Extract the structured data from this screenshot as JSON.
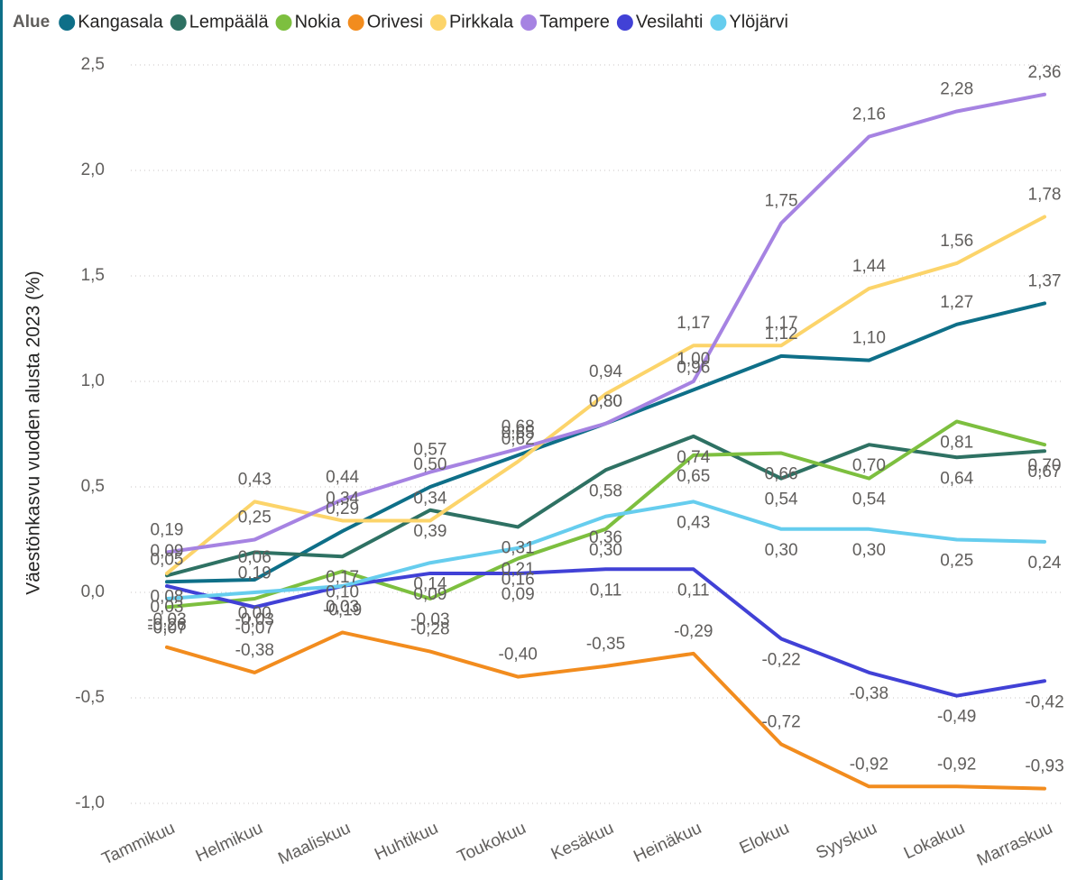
{
  "chart_data": {
    "type": "line",
    "legend_title": "Alue",
    "y_label": "Väestönkasvu vuoden alusta 2023 (%)",
    "categories": [
      "Tammikuu",
      "Helmikuu",
      "Maaliskuu",
      "Huhtikuu",
      "Toukokuu",
      "Kesäkuu",
      "Heinäkuu",
      "Elokuu",
      "Syyskuu",
      "Lokakuu",
      "Marraskuu"
    ],
    "ylim": [
      -1.0,
      2.5
    ],
    "yticks": [
      {
        "value": -1.0,
        "label": "-1,0"
      },
      {
        "value": -0.5,
        "label": "-0,5"
      },
      {
        "value": 0.0,
        "label": "0,0"
      },
      {
        "value": 0.5,
        "label": "0,5"
      },
      {
        "value": 1.0,
        "label": "1,0"
      },
      {
        "value": 1.5,
        "label": "1,5"
      },
      {
        "value": 2.0,
        "label": "2,0"
      },
      {
        "value": 2.5,
        "label": "2,5"
      }
    ],
    "grid": true,
    "series": [
      {
        "name": "Kangasala",
        "color": "#0e6f88",
        "values": [
          0.05,
          0.06,
          0.29,
          0.5,
          0.65,
          0.8,
          0.96,
          1.12,
          1.1,
          1.27,
          1.37
        ],
        "value_labels": [
          "0,05",
          "0,06",
          "0,29",
          "0,50",
          "0,65",
          "0,80",
          "0,96",
          "1,12",
          "1,10",
          "1,27",
          "1,37"
        ]
      },
      {
        "name": "Lempäälä",
        "color": "#2e7163",
        "values": [
          0.08,
          0.19,
          0.17,
          0.39,
          0.31,
          0.58,
          0.74,
          0.54,
          0.7,
          0.64,
          0.67
        ],
        "value_labels": [
          "0,08",
          "0,19",
          "0,17",
          "0,39",
          "0,31",
          "0,58",
          "0,74",
          "0,54",
          "0,70",
          "0,64",
          "0,67"
        ]
      },
      {
        "name": "Nokia",
        "color": "#7dbf3f",
        "values": [
          -0.07,
          -0.03,
          0.1,
          -0.03,
          0.16,
          0.3,
          0.65,
          0.66,
          0.54,
          0.81,
          0.7
        ],
        "value_labels": [
          "-0,07",
          "-0,03",
          "0,10",
          "-0,03",
          "0,16",
          "0,30",
          "0,65",
          "0,66",
          "0,54",
          "0,81",
          "0,70"
        ]
      },
      {
        "name": "Orivesi",
        "color": "#f28c1e",
        "values": [
          -0.26,
          -0.38,
          -0.19,
          -0.28,
          -0.4,
          -0.35,
          -0.29,
          -0.72,
          -0.92,
          -0.92,
          -0.93
        ],
        "value_labels": [
          "-0,26",
          "-0,38",
          "-0,19",
          "-0,28",
          "-0,40",
          "-0,35",
          "-0,29",
          "-0,72",
          "-0,92",
          "-0,92",
          "-0,93"
        ]
      },
      {
        "name": "Pirkkala",
        "color": "#fcd46a",
        "values": [
          0.09,
          0.43,
          0.34,
          0.34,
          0.62,
          0.94,
          1.17,
          1.17,
          1.44,
          1.56,
          1.78
        ],
        "value_labels": [
          "0,09",
          "0,43",
          "0,34",
          "0,34",
          "0,62",
          "0,94",
          "1,17",
          "1,17",
          "1,44",
          "1,56",
          "1,78"
        ]
      },
      {
        "name": "Tampere",
        "color": "#a683e2",
        "values": [
          0.19,
          0.25,
          0.44,
          0.57,
          0.68,
          0.8,
          1.0,
          1.75,
          2.16,
          2.28,
          2.36
        ],
        "value_labels": [
          "0,19",
          "0,25",
          "0,44",
          "0,57",
          "0,68",
          "0,80",
          "1,00",
          "1,75",
          "2,16",
          "2,28",
          "2,36"
        ]
      },
      {
        "name": "Vesilahti",
        "color": "#4141d6",
        "values": [
          0.03,
          -0.07,
          0.03,
          0.09,
          0.09,
          0.11,
          0.11,
          -0.22,
          -0.38,
          -0.49,
          -0.42
        ],
        "value_labels": [
          "0,03",
          "-0,07",
          "0,03",
          "0,09",
          "0,09",
          "0,11",
          "0,11",
          "-0,22",
          "-0,38",
          "-0,49",
          "-0,42"
        ]
      },
      {
        "name": "Ylöjärvi",
        "color": "#66cdee",
        "values": [
          -0.03,
          0.0,
          0.03,
          0.14,
          0.21,
          0.36,
          0.43,
          0.3,
          0.3,
          0.25,
          0.24
        ],
        "value_labels": [
          "-0,03",
          "0,00",
          "0,03",
          "0,14",
          "0,21",
          "0,36",
          "0,43",
          "0,30",
          "0,30",
          "0,25",
          "0,24"
        ]
      }
    ]
  }
}
